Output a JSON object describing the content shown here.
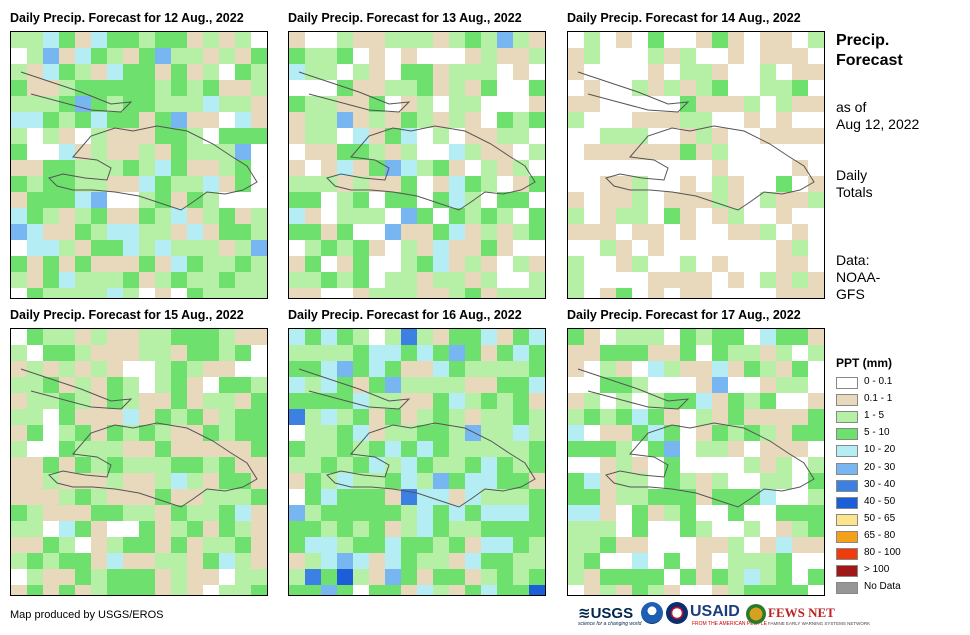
{
  "panels": [
    {
      "title": "Daily Precip. Forecast for 12 Aug., 2022",
      "date": "12 Aug., 2022"
    },
    {
      "title": "Daily Precip. Forecast for 13 Aug., 2022",
      "date": "13 Aug., 2022"
    },
    {
      "title": "Daily Precip. Forecast for 14 Aug., 2022",
      "date": "14 Aug., 2022"
    },
    {
      "title": "Daily Precip. Forecast for 15 Aug., 2022",
      "date": "15 Aug., 2022"
    },
    {
      "title": "Daily Precip. Forecast for 16 Aug., 2022",
      "date": "16 Aug., 2022"
    },
    {
      "title": "Daily Precip. Forecast for 17 Aug., 2022",
      "date": "17 Aug., 2022"
    }
  ],
  "side": {
    "title_line1": "Precip.",
    "title_line2": "Forecast",
    "asof_line1": "as of",
    "asof_line2": "Aug 12, 2022",
    "totals_line1": "Daily",
    "totals_line2": "Totals",
    "data_line1": "Data:",
    "data_line2": "NOAA-",
    "data_line3": "GFS"
  },
  "legend": {
    "title": "PPT (mm)",
    "items": [
      {
        "label": "0 - 0.1",
        "color": "#ffffff"
      },
      {
        "label": "0.1 - 1",
        "color": "#e8d8bc"
      },
      {
        "label": "1 - 5",
        "color": "#b6f0a6"
      },
      {
        "label": "5 - 10",
        "color": "#6ee06e"
      },
      {
        "label": "10 - 20",
        "color": "#b4eef4"
      },
      {
        "label": "20 - 30",
        "color": "#78b6f2"
      },
      {
        "label": "30 - 40",
        "color": "#3c80e4"
      },
      {
        "label": "40 - 50",
        "color": "#1c5ed8"
      },
      {
        "label": "50 - 65",
        "color": "#fce48c"
      },
      {
        "label": "65 - 80",
        "color": "#f4a018"
      },
      {
        "label": "80 - 100",
        "color": "#f03c0c"
      },
      {
        "label": "> 100",
        "color": "#a01818"
      },
      {
        "label": "No Data",
        "color": "#969696"
      }
    ]
  },
  "footer": {
    "credit": "Map produced by USGS/EROS",
    "usgs": "USGS",
    "usgs_tagline": "science for a changing world",
    "usaid": "USAID",
    "usaid_tagline": "FROM THE AMERICAN PEOPLE",
    "fews": "FEWS NET",
    "fews_tagline": "FAMINE EARLY WARNING SYSTEMS NETWORK"
  }
}
